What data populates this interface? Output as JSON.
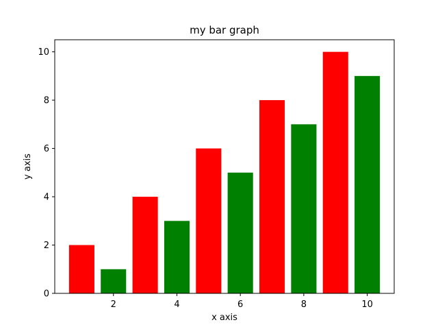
{
  "chart_data": {
    "type": "bar",
    "title": "my bar graph",
    "xlabel": "x axis",
    "ylabel": "y axis",
    "x": [
      1,
      2,
      3,
      4,
      5,
      6,
      7,
      8,
      9,
      10
    ],
    "values": [
      2,
      1,
      4,
      3,
      6,
      5,
      8,
      7,
      10,
      9
    ],
    "bar_colors": [
      "#ff0000",
      "#008000",
      "#ff0000",
      "#008000",
      "#ff0000",
      "#008000",
      "#ff0000",
      "#008000",
      "#ff0000",
      "#008000"
    ],
    "bar_width": 0.8,
    "xlim": [
      0.15,
      10.85
    ],
    "ylim": [
      0,
      10.5
    ],
    "xticks": [
      2,
      4,
      6,
      8,
      10
    ],
    "yticks": [
      0,
      2,
      4,
      6,
      8,
      10
    ],
    "grid": false,
    "legend": null
  }
}
